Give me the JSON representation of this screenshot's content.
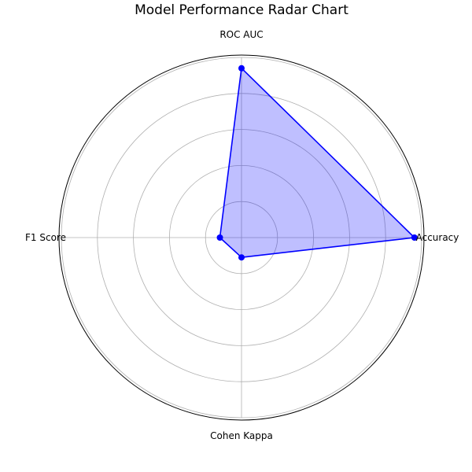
{
  "chart_data": {
    "type": "radar",
    "title": "Model Performance Radar Chart",
    "categories": [
      "Accuracy",
      "ROC AUC",
      "F1 Score",
      "Cohen Kappa"
    ],
    "series": [
      {
        "values": [
          0.96,
          0.94,
          0.12,
          0.11
        ]
      }
    ],
    "rlim": [
      0,
      1
    ],
    "rgrid": [
      0.2,
      0.4,
      0.6,
      0.8,
      1.0
    ],
    "grid": true,
    "show_radial_tick_labels": false,
    "colors": {
      "line": "#0000ff",
      "fill": "#0000ff",
      "fill_opacity": 0.25,
      "grid": "#b0b0b0",
      "frame": "#000000"
    }
  }
}
